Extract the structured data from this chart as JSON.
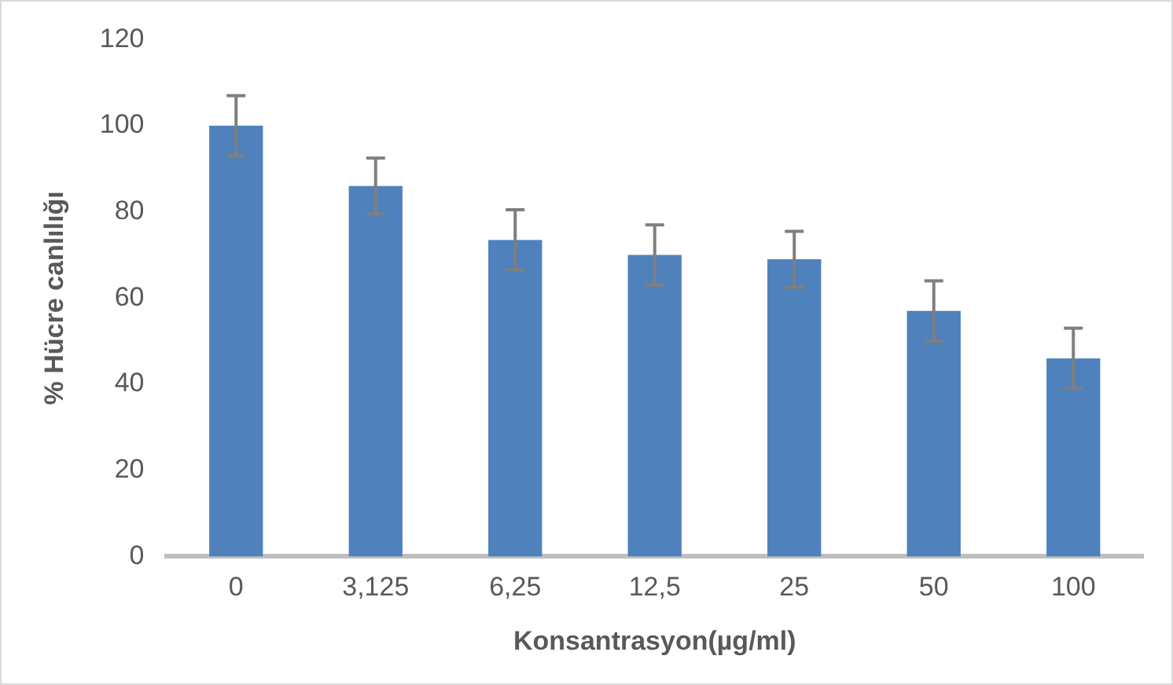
{
  "chart_data": {
    "type": "bar",
    "xlabel": "Konsantrasyon(µg/ml)",
    "ylabel": "% Hücre canlılığı",
    "categories": [
      "0",
      "3,125",
      "6,25",
      "12,5",
      "25",
      "50",
      "100"
    ],
    "values": [
      100,
      86,
      73.5,
      70,
      69,
      57,
      46
    ],
    "errors": [
      7,
      6.5,
      7,
      7,
      6.5,
      7,
      7
    ],
    "color": "#4f81bd",
    "ylim": [
      0,
      120
    ],
    "yticks": [
      0,
      20,
      40,
      60,
      80,
      100,
      120
    ],
    "grid": false,
    "legend": false
  }
}
